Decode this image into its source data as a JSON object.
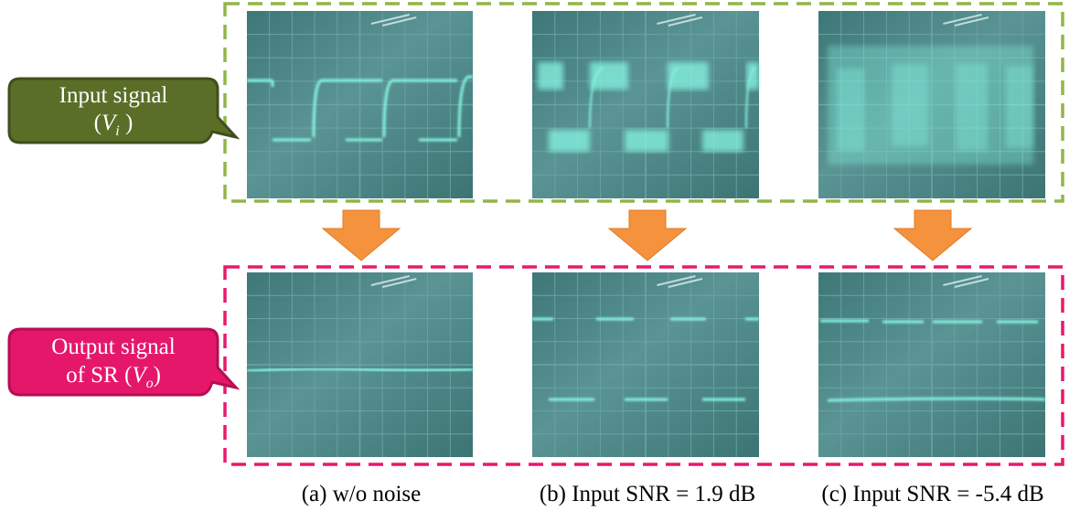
{
  "labels": {
    "input": {
      "line1": "Input signal",
      "open": "(",
      "symbol": "V",
      "sub": "i",
      "close": " )"
    },
    "output": {
      "line1": "Output signal",
      "prefix": "of SR (",
      "symbol": "V",
      "sub": "o",
      "close": ")"
    }
  },
  "captions": [
    "(a) w/o noise",
    "(b) Input SNR = 1.9 dB",
    "(c) Input SNR = -5.4 dB"
  ]
}
